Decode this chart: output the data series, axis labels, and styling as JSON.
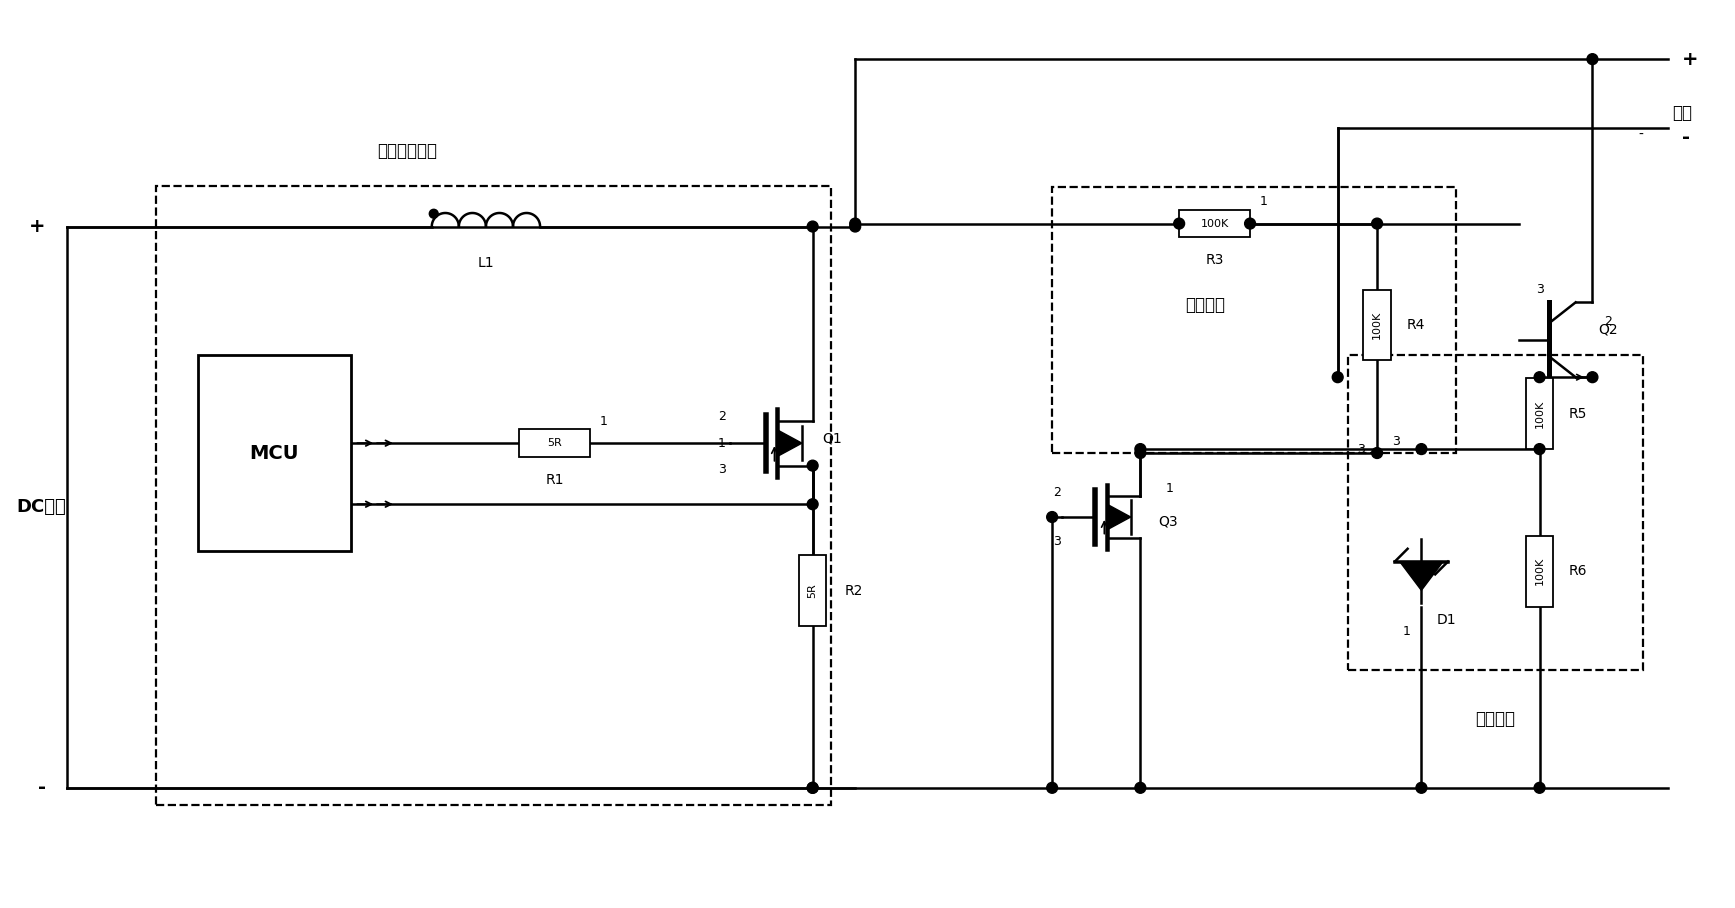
{
  "bg_color": "#ffffff",
  "line_color": "#000000",
  "boost_label": "升压型恒流源",
  "pressure_label": "压控单元",
  "drive_label": "驱动单元",
  "dc_input_label": "DC输入",
  "output_label": "输出",
  "L1_label": "L1",
  "R1_label": "R1",
  "R1_val": "5R",
  "R2_label": "R2",
  "R2_val": "5R",
  "R3_label": "R3",
  "R3_val": "100K",
  "R4_label": "R4",
  "R4_val": "100K",
  "R5_label": "R5",
  "R5_val": "100K",
  "R6_label": "R6",
  "R6_val": "100K",
  "Q1_label": "Q1",
  "Q2_label": "Q2",
  "Q3_label": "Q3",
  "D1_label": "D1",
  "MCU_label": "MCU"
}
